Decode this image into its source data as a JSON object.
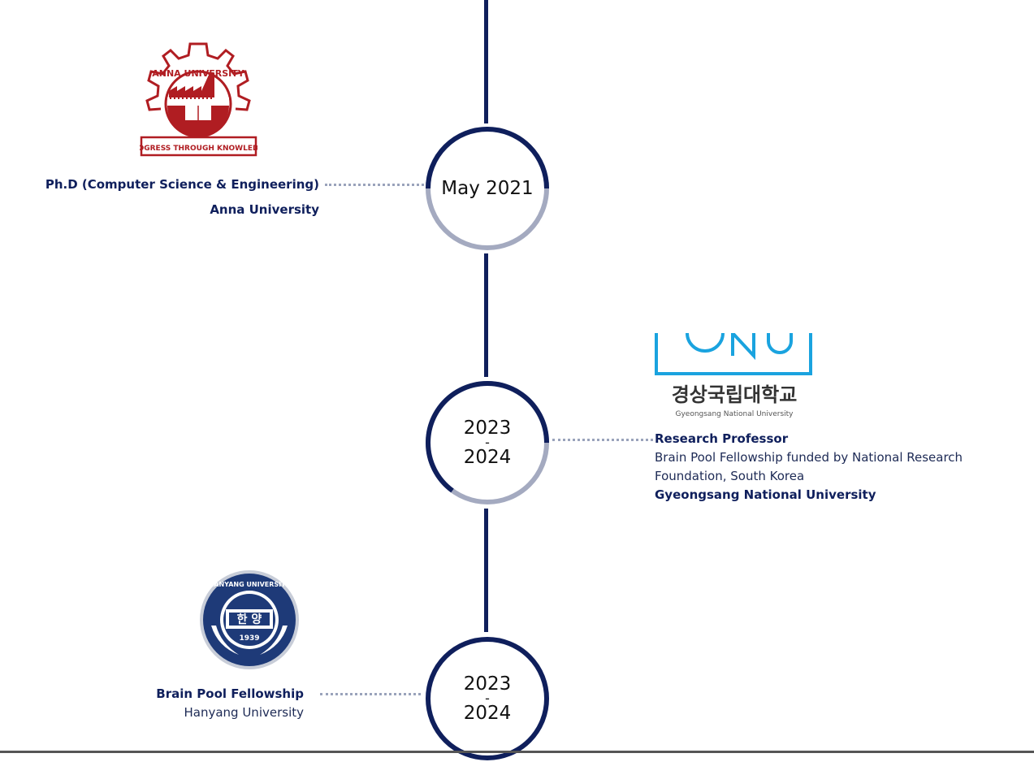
{
  "colors": {
    "timeline": "#0f1f5c",
    "ring_light": "#a4aac0",
    "connector": "#9aa3bb",
    "anna_red": "#b01d22",
    "gnu_blue": "#1aa3df",
    "hanyang_blue": "#1e3a78"
  },
  "entries": [
    {
      "date": "May 2021",
      "title": "Ph.D (Computer Science & Engineering)",
      "institution": "Anna University",
      "logo": {
        "icon": "anna-university-gear-logo",
        "arc_text": "ANNA UNIVERSITY",
        "banner_text": "PROGRESS THROUGH KNOWLEDGE"
      }
    },
    {
      "date_line1": "2023",
      "date_sep": "-",
      "date_line2": "2024",
      "title": "Research Professor",
      "description": "Brain Pool Fellowship funded by National Research Foundation, South Korea",
      "institution": "Gyeongsang National University",
      "logo": {
        "icon": "gnu-logo",
        "mark_text": "GNU",
        "korean_text": "경상국립대학교",
        "english_text": "Gyeongsang National University"
      }
    },
    {
      "date_line1": "2023",
      "date_sep": "-",
      "date_line2": "2024",
      "title": "Brain Pool Fellowship",
      "institution": "Hanyang University",
      "logo": {
        "icon": "hanyang-university-seal",
        "arc_text": "HANYANG UNIVERSITY",
        "center_text": "한 양",
        "year_text": "1939"
      }
    }
  ]
}
